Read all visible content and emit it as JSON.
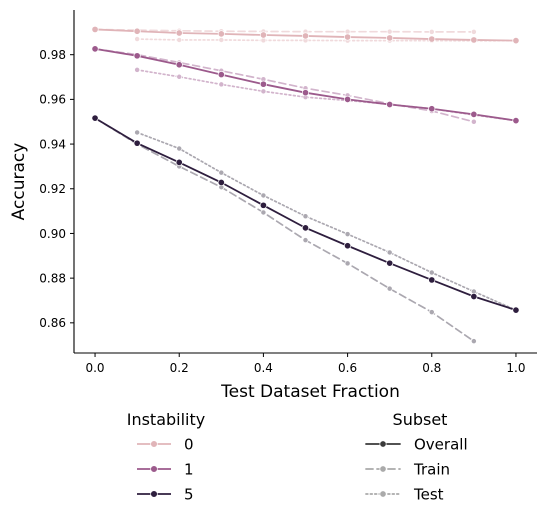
{
  "chart_data": {
    "type": "line",
    "xlabel": "Test Dataset Fraction",
    "ylabel": "Accuracy",
    "xlim": [
      -0.05,
      1.05
    ],
    "ylim": [
      0.8465,
      1.0
    ],
    "xticks": [
      0.0,
      0.2,
      0.4,
      0.6,
      0.8,
      1.0
    ],
    "xtick_labels": [
      "0.0",
      "0.2",
      "0.4",
      "0.6",
      "0.8",
      "1.0"
    ],
    "yticks": [
      0.86,
      0.88,
      0.9,
      0.92,
      0.94,
      0.96,
      0.98
    ],
    "ytick_labels": [
      "0.86",
      "0.88",
      "0.90",
      "0.92",
      "0.94",
      "0.96",
      "0.98"
    ],
    "grid": false,
    "legend_placement": "below",
    "legend": {
      "hue_title": "Instability",
      "hue_entries": [
        {
          "label": "0",
          "color": "#e0b4b8"
        },
        {
          "label": "1",
          "color": "#9c5a8c"
        },
        {
          "label": "5",
          "color": "#2e1e3e"
        }
      ],
      "style_title": "Subset",
      "style_entries": [
        {
          "label": "Overall",
          "style": "solid",
          "color": "#3a3a3a"
        },
        {
          "label": "Train",
          "style": "dashed",
          "color": "#aaaaaa"
        },
        {
          "label": "Test",
          "style": "dotted",
          "color": "#aaaaaa"
        }
      ]
    },
    "series": [
      {
        "instability": "0",
        "subset": "Overall",
        "color": "#e0b4b8",
        "style": "solid",
        "x": [
          0.0,
          0.1,
          0.2,
          0.3,
          0.4,
          0.5,
          0.6,
          0.7,
          0.8,
          0.9,
          1.0
        ],
        "y": [
          0.9913,
          0.9905,
          0.9897,
          0.9893,
          0.9888,
          0.9884,
          0.9879,
          0.9875,
          0.987,
          0.9866,
          0.9863
        ]
      },
      {
        "instability": "0",
        "subset": "Train",
        "color": "#f0dadc",
        "style": "dashed",
        "x": [
          0.0,
          0.1,
          0.2,
          0.3,
          0.4,
          0.5,
          0.6,
          0.7,
          0.8,
          0.9
        ],
        "y": [
          0.9913,
          0.991,
          0.9907,
          0.9905,
          0.9904,
          0.9903,
          0.9903,
          0.9903,
          0.9902,
          0.9902
        ]
      },
      {
        "instability": "0",
        "subset": "Test",
        "color": "#f0dadc",
        "style": "dotted",
        "x": [
          0.1,
          0.2,
          0.3,
          0.4,
          0.5,
          0.6,
          0.7,
          0.8,
          0.9,
          1.0
        ],
        "y": [
          0.987,
          0.9866,
          0.9866,
          0.9864,
          0.9864,
          0.9863,
          0.9863,
          0.9863,
          0.9862,
          0.9863
        ]
      },
      {
        "instability": "1",
        "subset": "Overall",
        "color": "#9c5a8c",
        "style": "solid",
        "x": [
          0.0,
          0.1,
          0.2,
          0.3,
          0.4,
          0.5,
          0.6,
          0.7,
          0.8,
          0.9,
          1.0
        ],
        "y": [
          0.9826,
          0.9795,
          0.9755,
          0.9711,
          0.9668,
          0.963,
          0.96,
          0.9577,
          0.9558,
          0.9533,
          0.9505
        ]
      },
      {
        "instability": "1",
        "subset": "Train",
        "color": "#d2b4cc",
        "style": "dashed",
        "x": [
          0.0,
          0.1,
          0.2,
          0.3,
          0.4,
          0.5,
          0.6,
          0.7,
          0.8,
          0.9
        ],
        "y": [
          0.9826,
          0.98,
          0.9765,
          0.9728,
          0.969,
          0.965,
          0.9618,
          0.958,
          0.9548,
          0.95
        ]
      },
      {
        "instability": "1",
        "subset": "Test",
        "color": "#d2b4cc",
        "style": "dotted",
        "x": [
          0.1,
          0.2,
          0.3,
          0.4,
          0.5,
          0.6,
          0.7,
          0.8,
          0.9,
          1.0
        ],
        "y": [
          0.9732,
          0.9701,
          0.9667,
          0.9636,
          0.961,
          0.9595,
          0.9578,
          0.9558,
          0.953,
          0.9505
        ]
      },
      {
        "instability": "5",
        "subset": "Overall",
        "color": "#2e1e3e",
        "style": "solid",
        "x": [
          0.0,
          0.1,
          0.2,
          0.3,
          0.4,
          0.5,
          0.6,
          0.7,
          0.8,
          0.9,
          1.0
        ],
        "y": [
          0.9516,
          0.9404,
          0.9318,
          0.9228,
          0.9126,
          0.9025,
          0.8945,
          0.8867,
          0.8792,
          0.8718,
          0.8657
        ]
      },
      {
        "instability": "5",
        "subset": "Train",
        "color": "#aba8b0",
        "style": "dashed",
        "x": [
          0.0,
          0.1,
          0.2,
          0.3,
          0.4,
          0.5,
          0.6,
          0.7,
          0.8,
          0.9
        ],
        "y": [
          0.9516,
          0.94,
          0.93,
          0.9207,
          0.9094,
          0.897,
          0.8866,
          0.8753,
          0.8648,
          0.8518
        ]
      },
      {
        "instability": "5",
        "subset": "Test",
        "color": "#aba8b0",
        "style": "dotted",
        "x": [
          0.1,
          0.2,
          0.3,
          0.4,
          0.5,
          0.6,
          0.7,
          0.8,
          0.9,
          1.0
        ],
        "y": [
          0.9452,
          0.938,
          0.9272,
          0.917,
          0.9077,
          0.8997,
          0.8915,
          0.8825,
          0.874,
          0.8657
        ]
      }
    ]
  }
}
